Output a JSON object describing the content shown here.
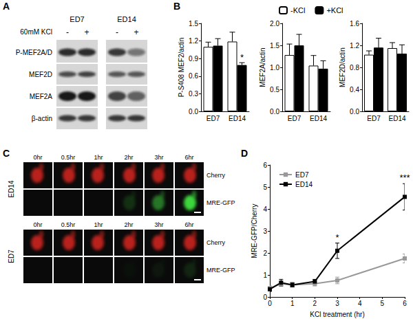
{
  "panel_labels": [
    "A",
    "B",
    "C",
    "D"
  ],
  "blot": {
    "treatment": "60mM KCl",
    "signs": [
      "-",
      "+",
      "-",
      "+"
    ],
    "groups": [
      "ED7",
      "ED14"
    ],
    "rows": [
      "P-MEF2A/D",
      "MEF2D",
      "MEF2A",
      "β-actin"
    ]
  },
  "images": {
    "timepoints": [
      "0hr",
      "0.5hr",
      "1hr",
      "2hr",
      "3hr",
      "6hr"
    ],
    "groups": [
      "ED14",
      "ED7"
    ],
    "channels": [
      "Cherry",
      "MRE-GFP"
    ]
  },
  "chart_data": [
    {
      "type": "bar",
      "categories": [
        "ED7",
        "ED14"
      ],
      "series": [
        {
          "name": "-KCl",
          "color": "#ffffff",
          "values": [
            1.1,
            1.19
          ],
          "errors": [
            0.08,
            0.16
          ]
        },
        {
          "name": "+KCl",
          "color": "#000000",
          "values": [
            1.12,
            0.79
          ],
          "errors": [
            0.12,
            0.04
          ]
        }
      ],
      "ylabel": "P-S408 MEF2/actin",
      "ylim": [
        0,
        1.5
      ],
      "yticks": [
        {
          "value": 0,
          "label": "0.0"
        },
        0.3,
        0.6,
        0.9,
        1.2,
        1.5
      ],
      "annotations": [
        {
          "text": "*",
          "category": "ED14",
          "series": "+KCl"
        }
      ],
      "legend": "top",
      "grid": false
    },
    {
      "type": "bar",
      "categories": [
        "ED7",
        "ED14"
      ],
      "series": [
        {
          "name": "-KCl",
          "color": "#ffffff",
          "values": [
            1.28,
            1.04
          ],
          "errors": [
            0.25,
            0.23
          ]
        },
        {
          "name": "+KCl",
          "color": "#000000",
          "values": [
            1.5,
            0.97
          ],
          "errors": [
            0.25,
            0.18
          ]
        }
      ],
      "ylabel": "MEF2A/actin",
      "ylim": [
        0,
        2
      ],
      "yticks": [
        {
          "value": 0,
          "label": "0.0"
        },
        0.5,
        {
          "value": 1,
          "label": "1.0"
        },
        1.5,
        {
          "value": 2,
          "label": "2.0"
        }
      ],
      "grid": false
    },
    {
      "type": "bar",
      "categories": [
        "ED7",
        "ED14"
      ],
      "series": [
        {
          "name": "-KCl",
          "color": "#ffffff",
          "values": [
            1.03,
            1.15
          ],
          "errors": [
            0.07,
            0.1
          ]
        },
        {
          "name": "+KCl",
          "color": "#000000",
          "values": [
            1.16,
            1.05
          ],
          "errors": [
            0.17,
            0.16
          ]
        }
      ],
      "ylabel": "MEF2D/actin",
      "ylim": [
        0,
        1.6
      ],
      "yticks": [
        {
          "value": 0,
          "label": "0.0"
        },
        0.4,
        0.8,
        1.2,
        1.6
      ],
      "grid": false
    },
    {
      "type": "line",
      "x": [
        0,
        0.5,
        1,
        2,
        3,
        6
      ],
      "series": [
        {
          "name": "ED7",
          "color": "#999999",
          "marker": "square",
          "values": [
            0.4,
            0.6,
            0.55,
            0.6,
            0.75,
            1.75
          ],
          "errors": [
            0.1,
            0.1,
            0.1,
            0.1,
            0.15,
            0.2
          ]
        },
        {
          "name": "ED14",
          "color": "#000000",
          "marker": "square",
          "values": [
            0.35,
            0.65,
            0.55,
            0.7,
            2.1,
            4.55
          ],
          "errors": [
            0.1,
            0.15,
            0.1,
            0.1,
            0.35,
            0.6
          ]
        }
      ],
      "xlabel": "KCl treatment (hr)",
      "ylabel": "MRE-GFP/Cherry",
      "xlim": [
        0,
        6
      ],
      "xticks": [
        0,
        1,
        2,
        3,
        4,
        5,
        6
      ],
      "ylim": [
        0,
        6
      ],
      "yticks": [
        0,
        1,
        2,
        3,
        4,
        5,
        6
      ],
      "annotations": [
        {
          "text": "*",
          "x": 3,
          "series": "ED14"
        },
        {
          "text": "***",
          "x": 6,
          "series": "ED14"
        }
      ],
      "legend": "upper left",
      "grid": false
    }
  ]
}
